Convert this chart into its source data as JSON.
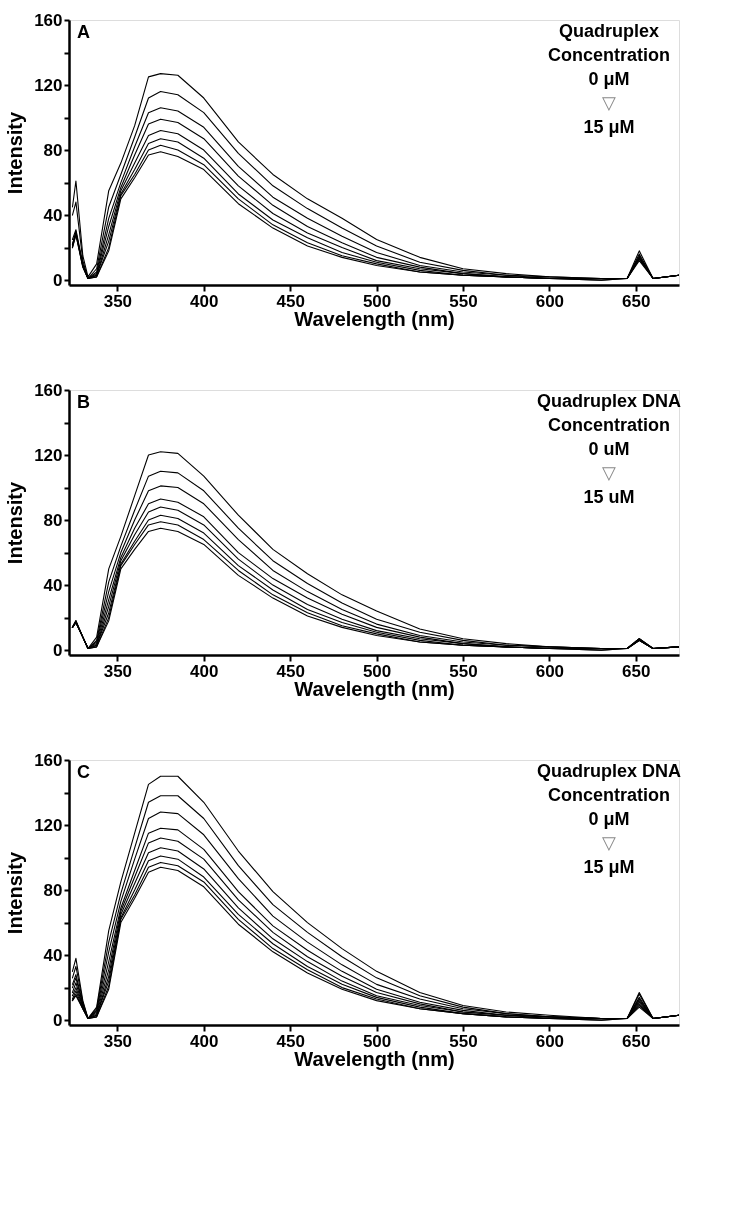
{
  "chart_data": [
    {
      "type": "line",
      "xlabel": "Wavelength (nm)",
      "ylabel": "Intensity",
      "annotations": [
        "A",
        "Quadruplex",
        "Concentration",
        "0 μM",
        "▽",
        "15 μM"
      ],
      "xlim": [
        322,
        675
      ],
      "ylim": [
        -3,
        160
      ],
      "xticks": [
        350,
        400,
        450,
        500,
        550,
        600,
        650
      ],
      "yticks": [
        0,
        {
          "value": 20,
          "label": null
        },
        40,
        {
          "value": 60,
          "label": null
        },
        80,
        {
          "value": 100,
          "label": null
        },
        120,
        {
          "value": 140,
          "label": null
        },
        160
      ],
      "grid": false,
      "legend": false,
      "marker": "none",
      "line_style": "solid",
      "x": [
        324,
        326,
        330,
        333,
        338,
        345,
        352,
        360,
        368,
        375,
        385,
        400,
        420,
        440,
        460,
        480,
        500,
        525,
        550,
        575,
        600,
        630,
        645,
        652,
        660,
        675
      ],
      "series": [
        {
          "color": "#000000",
          "values": [
            45,
            61,
            15,
            2,
            10,
            55,
            72,
            95,
            125,
            127,
            126,
            112,
            85,
            65,
            50,
            38,
            25,
            14,
            7,
            4,
            2,
            1,
            1,
            18,
            1,
            3
          ]
        },
        {
          "color": "#000000",
          "values": [
            40,
            48,
            12,
            1,
            7,
            45,
            65,
            88,
            112,
            116,
            114,
            103,
            78,
            58,
            44,
            32,
            21,
            11,
            6,
            3,
            2,
            1,
            1,
            16,
            1,
            3
          ]
        },
        {
          "color": "#000000",
          "values": [
            25,
            31,
            10,
            1,
            5,
            38,
            60,
            82,
            103,
            106,
            104,
            94,
            70,
            51,
            38,
            27,
            17,
            9,
            5,
            3,
            1,
            1,
            1,
            15,
            1,
            3
          ]
        },
        {
          "color": "#000000",
          "values": [
            22,
            30,
            9,
            1,
            4,
            33,
            57,
            77,
            96,
            99,
            97,
            87,
            64,
            46,
            33,
            23,
            14,
            8,
            4,
            2,
            1,
            1,
            1,
            14,
            1,
            3
          ]
        },
        {
          "color": "#000000",
          "values": [
            22,
            29,
            9,
            1,
            3,
            28,
            55,
            72,
            89,
            92,
            90,
            80,
            58,
            41,
            29,
            20,
            12,
            7,
            4,
            2,
            1,
            1,
            1,
            14,
            1,
            3
          ]
        },
        {
          "color": "#000000",
          "values": [
            21,
            29,
            9,
            1,
            3,
            24,
            53,
            68,
            84,
            87,
            85,
            75,
            53,
            37,
            26,
            17,
            11,
            6,
            3,
            2,
            1,
            1,
            1,
            13,
            1,
            3
          ]
        },
        {
          "color": "#000000",
          "values": [
            20,
            28,
            8,
            1,
            2,
            20,
            52,
            65,
            80,
            83,
            80,
            71,
            50,
            34,
            23,
            15,
            10,
            5,
            3,
            2,
            1,
            0,
            1,
            13,
            1,
            3
          ]
        },
        {
          "color": "#000000",
          "values": [
            20,
            28,
            8,
            1,
            2,
            18,
            50,
            63,
            77,
            79,
            76,
            68,
            47,
            32,
            21,
            14,
            9,
            5,
            3,
            2,
            1,
            0,
            1,
            12,
            1,
            3
          ]
        }
      ]
    },
    {
      "type": "line",
      "xlabel": "Wavelength (nm)",
      "ylabel": "Intensity",
      "annotations": [
        "B",
        "Quadruplex DNA",
        "Concentration",
        "0 uM",
        "▽",
        "15 uM"
      ],
      "xlim": [
        322,
        675
      ],
      "ylim": [
        -3,
        160
      ],
      "xticks": [
        350,
        400,
        450,
        500,
        550,
        600,
        650
      ],
      "yticks": [
        0,
        {
          "value": 20,
          "label": null
        },
        40,
        {
          "value": 60,
          "label": null
        },
        80,
        {
          "value": 100,
          "label": null
        },
        120,
        {
          "value": 140,
          "label": null
        },
        160
      ],
      "grid": false,
      "legend": false,
      "marker": "none",
      "line_style": "solid",
      "x": [
        324,
        326,
        330,
        333,
        338,
        345,
        352,
        360,
        368,
        375,
        385,
        400,
        420,
        440,
        460,
        480,
        500,
        525,
        550,
        575,
        600,
        630,
        645,
        652,
        660,
        675
      ],
      "series": [
        {
          "color": "#000000",
          "values": [
            14,
            18,
            8,
            1,
            8,
            50,
            70,
            95,
            120,
            122,
            121,
            107,
            83,
            62,
            47,
            34,
            24,
            13,
            7,
            4,
            2,
            1,
            1,
            7,
            1,
            2
          ]
        },
        {
          "color": "#000000",
          "values": [
            14,
            18,
            8,
            1,
            6,
            42,
            64,
            86,
            107,
            110,
            109,
            98,
            75,
            55,
            41,
            29,
            19,
            11,
            6,
            3,
            2,
            1,
            1,
            7,
            1,
            2
          ]
        },
        {
          "color": "#000000",
          "values": [
            14,
            18,
            8,
            1,
            5,
            36,
            60,
            80,
            98,
            101,
            100,
            90,
            68,
            49,
            36,
            25,
            16,
            9,
            5,
            3,
            2,
            1,
            1,
            7,
            1,
            2
          ]
        },
        {
          "color": "#000000",
          "values": [
            14,
            17,
            8,
            1,
            4,
            31,
            57,
            75,
            90,
            93,
            91,
            82,
            60,
            44,
            32,
            22,
            14,
            8,
            4,
            2,
            1,
            1,
            1,
            6,
            1,
            2
          ]
        },
        {
          "color": "#000000",
          "values": [
            14,
            17,
            8,
            1,
            3,
            27,
            55,
            71,
            85,
            88,
            86,
            77,
            56,
            40,
            28,
            19,
            12,
            7,
            4,
            2,
            1,
            1,
            1,
            6,
            1,
            2
          ]
        },
        {
          "color": "#000000",
          "values": [
            14,
            17,
            8,
            1,
            3,
            23,
            53,
            67,
            80,
            83,
            81,
            72,
            52,
            37,
            25,
            17,
            11,
            6,
            3,
            2,
            1,
            1,
            1,
            6,
            1,
            2
          ]
        },
        {
          "color": "#000000",
          "values": [
            14,
            17,
            8,
            1,
            2,
            20,
            52,
            65,
            77,
            79,
            77,
            68,
            49,
            34,
            23,
            15,
            10,
            5,
            3,
            2,
            1,
            0,
            1,
            6,
            1,
            2
          ]
        },
        {
          "color": "#000000",
          "values": [
            14,
            17,
            8,
            1,
            2,
            18,
            50,
            62,
            73,
            75,
            73,
            65,
            46,
            32,
            21,
            14,
            9,
            5,
            3,
            2,
            1,
            0,
            1,
            6,
            1,
            2
          ]
        }
      ]
    },
    {
      "type": "line",
      "xlabel": "Wavelength (nm)",
      "ylabel": "Intensity",
      "annotations": [
        "C",
        "Quadruplex DNA",
        "Concentration",
        "0 μM",
        "▽",
        "15 μM"
      ],
      "xlim": [
        322,
        675
      ],
      "ylim": [
        -3,
        160
      ],
      "xticks": [
        350,
        400,
        450,
        500,
        550,
        600,
        650
      ],
      "yticks": [
        0,
        {
          "value": 20,
          "label": null
        },
        40,
        {
          "value": 60,
          "label": null
        },
        80,
        {
          "value": 100,
          "label": null
        },
        120,
        {
          "value": 140,
          "label": null
        },
        160
      ],
      "grid": false,
      "legend": false,
      "marker": "none",
      "line_style": "solid",
      "x": [
        324,
        326,
        330,
        333,
        338,
        345,
        352,
        360,
        368,
        375,
        385,
        400,
        420,
        440,
        460,
        480,
        500,
        525,
        550,
        575,
        600,
        630,
        645,
        652,
        660,
        675
      ],
      "series": [
        {
          "color": "#000000",
          "values": [
            30,
            38,
            12,
            1,
            8,
            55,
            85,
            115,
            145,
            150,
            150,
            134,
            104,
            79,
            60,
            44,
            30,
            17,
            9,
            5,
            3,
            1,
            1,
            17,
            1,
            3
          ]
        },
        {
          "color": "#000000",
          "values": [
            26,
            33,
            11,
            1,
            7,
            48,
            78,
            106,
            134,
            138,
            138,
            124,
            95,
            71,
            54,
            39,
            26,
            15,
            8,
            4,
            2,
            1,
            1,
            16,
            1,
            3
          ]
        },
        {
          "color": "#000000",
          "values": [
            22,
            28,
            10,
            1,
            6,
            42,
            73,
            99,
            124,
            128,
            127,
            114,
            87,
            64,
            48,
            34,
            22,
            13,
            7,
            4,
            2,
            1,
            1,
            14,
            1,
            3
          ]
        },
        {
          "color": "#000000",
          "values": [
            20,
            26,
            9,
            1,
            5,
            36,
            69,
            92,
            115,
            118,
            117,
            105,
            79,
            58,
            43,
            30,
            19,
            11,
            6,
            3,
            2,
            1,
            1,
            13,
            1,
            3
          ]
        },
        {
          "color": "#000000",
          "values": [
            17,
            23,
            8,
            1,
            4,
            31,
            67,
            88,
            109,
            112,
            110,
            99,
            74,
            54,
            39,
            27,
            17,
            10,
            5,
            3,
            2,
            1,
            1,
            12,
            1,
            3
          ]
        },
        {
          "color": "#000000",
          "values": [
            15,
            20,
            8,
            1,
            3,
            27,
            65,
            84,
            103,
            106,
            104,
            93,
            69,
            50,
            36,
            24,
            15,
            9,
            5,
            3,
            1,
            1,
            1,
            11,
            1,
            3
          ]
        },
        {
          "color": "#000000",
          "values": [
            13,
            18,
            7,
            1,
            3,
            24,
            63,
            80,
            98,
            101,
            99,
            88,
            65,
            47,
            33,
            22,
            14,
            8,
            4,
            2,
            1,
            1,
            1,
            10,
            1,
            3
          ]
        },
        {
          "color": "#000000",
          "values": [
            12,
            16,
            7,
            1,
            2,
            21,
            62,
            77,
            94,
            97,
            95,
            85,
            62,
            44,
            31,
            20,
            13,
            7,
            4,
            2,
            1,
            0,
            1,
            9,
            1,
            3
          ]
        },
        {
          "color": "#000000",
          "values": [
            12,
            15,
            7,
            1,
            2,
            19,
            60,
            75,
            91,
            94,
            92,
            82,
            59,
            42,
            29,
            19,
            12,
            7,
            4,
            2,
            1,
            0,
            1,
            8,
            1,
            3
          ]
        }
      ]
    }
  ]
}
